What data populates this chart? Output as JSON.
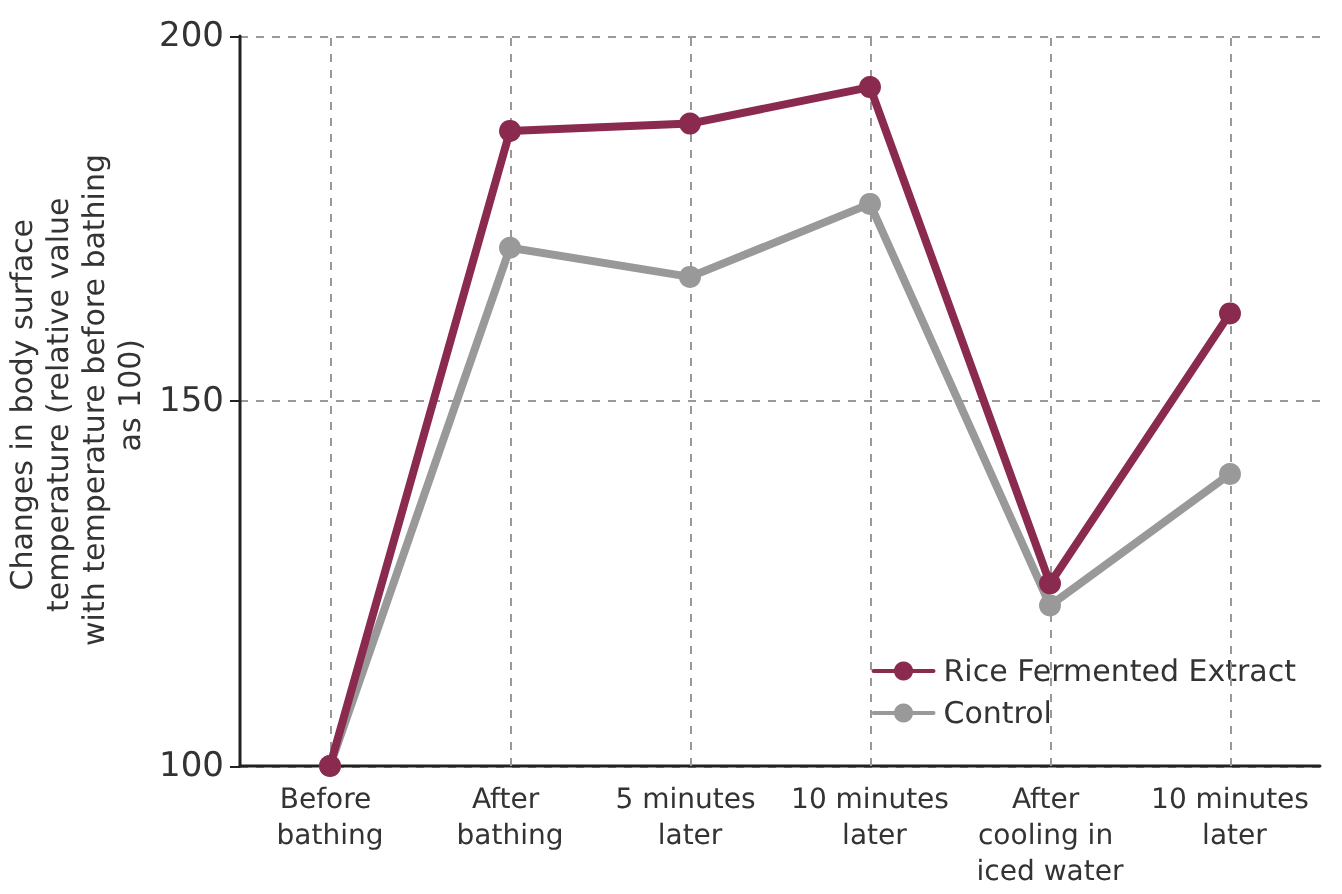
{
  "chart_data": {
    "type": "line",
    "ylabel": "Changes in body surface temperature (relative value with temperature before bathing as 100)",
    "categories": [
      "Before bathing",
      "After bathing",
      "5 minutes later",
      "10 minutes later",
      "After cooling in iced water",
      "10 minutes later"
    ],
    "series": [
      {
        "name": "Rice Fermented Extract",
        "color": "#8b2a4f",
        "values": [
          100,
          187,
          188,
          193,
          125,
          162
        ]
      },
      {
        "name": "Control",
        "color": "#999999",
        "values": [
          100,
          171,
          167,
          177,
          122,
          140
        ]
      }
    ],
    "ylim": [
      100,
      200
    ],
    "yticks": [
      100,
      150,
      200
    ],
    "grid": true,
    "legend": "bottom right",
    "marker": "circle",
    "line_style": "solid"
  }
}
